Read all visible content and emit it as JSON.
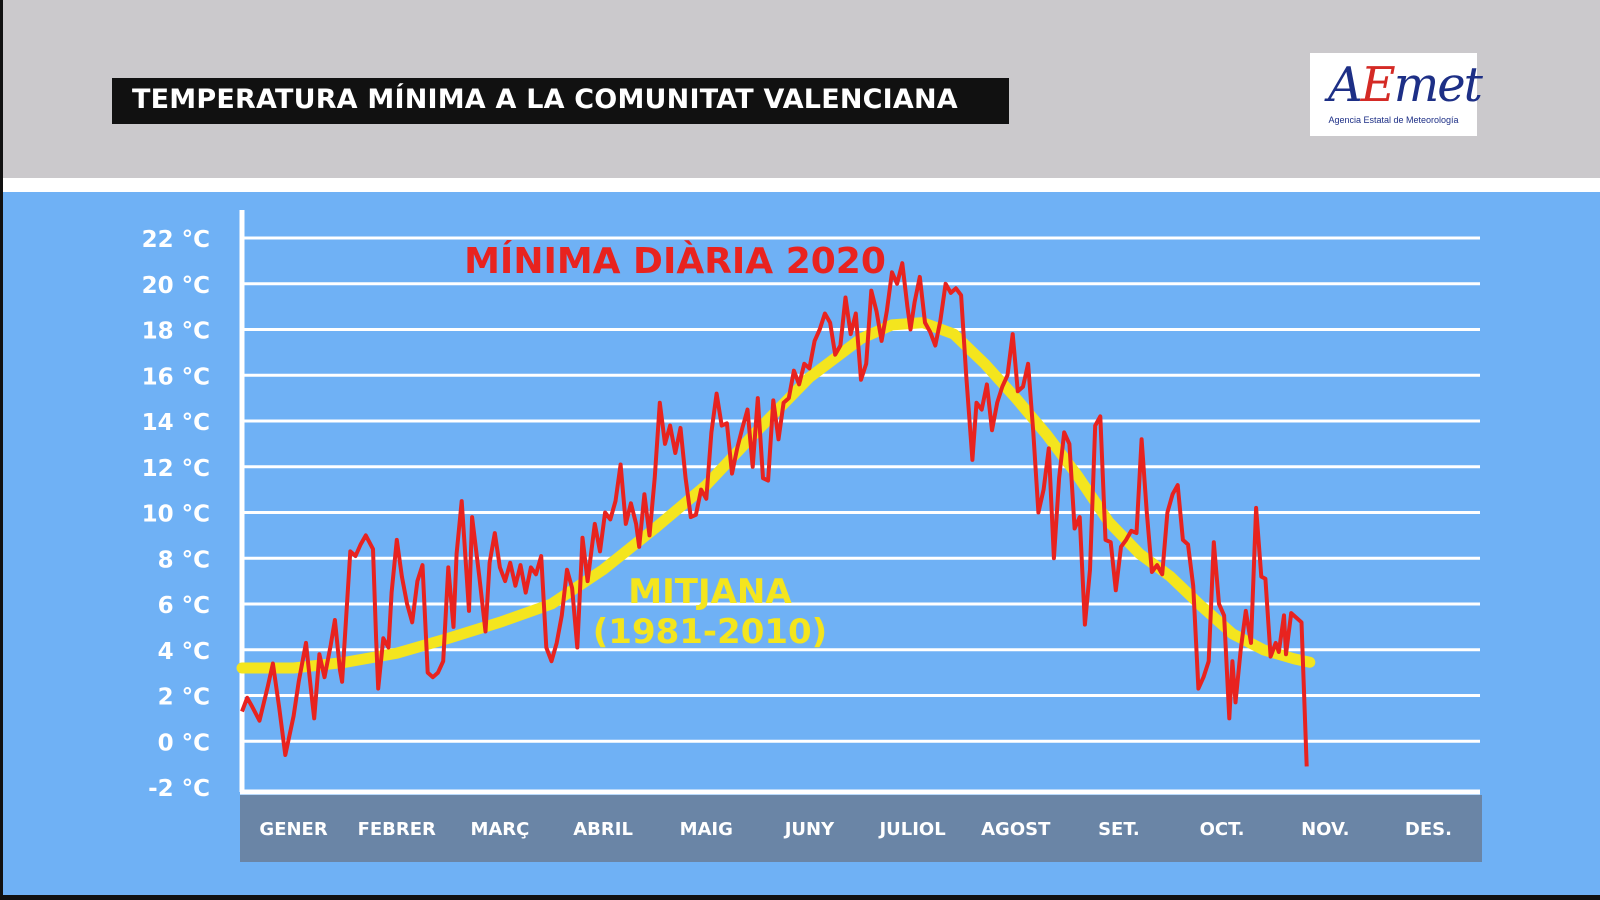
{
  "header": {
    "title": "TEMPERATURA MÍNIMA A LA COMUNITAT VALENCIANA",
    "logo": {
      "word_a": "A",
      "word_e": "E",
      "word_rest": "met",
      "subtitle": "Agencia Estatal de Meteorología"
    }
  },
  "colors": {
    "header_bg": "#cbc9cc",
    "plot_bg": "#6fb1f5",
    "month_band": "#6a85a6",
    "daily_line": "#e8231f",
    "average_line": "#f4e51e",
    "grid": "#ffffff"
  },
  "chart_data": {
    "type": "line",
    "title": "",
    "ylim": [
      -2,
      22
    ],
    "yticks": [
      {
        "value": -2,
        "label": "-2 °C"
      },
      {
        "value": 0,
        "label": "0 °C"
      },
      {
        "value": 2,
        "label": "2 °C"
      },
      {
        "value": 4,
        "label": "4 °C"
      },
      {
        "value": 6,
        "label": "6 °C"
      },
      {
        "value": 8,
        "label": "8 °C"
      },
      {
        "value": 10,
        "label": "10 °C"
      },
      {
        "value": 12,
        "label": "12 °C"
      },
      {
        "value": 14,
        "label": "14 °C"
      },
      {
        "value": 16,
        "label": "16 °C"
      },
      {
        "value": 18,
        "label": "18 °C"
      },
      {
        "value": 20,
        "label": "20 °C"
      },
      {
        "value": 22,
        "label": "22 °C"
      }
    ],
    "months": [
      "GENER",
      "FEBRER",
      "MARÇ",
      "ABRIL",
      "MAIG",
      "JUNY",
      "JULIOL",
      "AGOST",
      "SET.",
      "OCT.",
      "NOV.",
      "DES."
    ],
    "grid": true,
    "series": [
      {
        "name": "MÍNIMA DIÀRIA 2020",
        "color": "#e8231f",
        "points": [
          [
            0.0,
            1.3
          ],
          [
            0.05,
            1.9
          ],
          [
            0.1,
            1.5
          ],
          [
            0.17,
            0.9
          ],
          [
            0.25,
            2.4
          ],
          [
            0.3,
            3.4
          ],
          [
            0.36,
            1.5
          ],
          [
            0.42,
            -0.6
          ],
          [
            0.5,
            1.1
          ],
          [
            0.55,
            2.6
          ],
          [
            0.62,
            4.3
          ],
          [
            0.67,
            2.2
          ],
          [
            0.7,
            1.0
          ],
          [
            0.75,
            3.8
          ],
          [
            0.8,
            2.8
          ],
          [
            0.86,
            4.2
          ],
          [
            0.9,
            5.3
          ],
          [
            0.95,
            3.1
          ],
          [
            0.97,
            2.6
          ],
          [
            1.05,
            8.3
          ],
          [
            1.1,
            8.1
          ],
          [
            1.15,
            8.6
          ],
          [
            1.2,
            9.0
          ],
          [
            1.27,
            8.4
          ],
          [
            1.3,
            4.5
          ],
          [
            1.32,
            2.3
          ],
          [
            1.37,
            4.5
          ],
          [
            1.42,
            4.1
          ],
          [
            1.45,
            6.5
          ],
          [
            1.5,
            8.8
          ],
          [
            1.55,
            7.2
          ],
          [
            1.6,
            6.0
          ],
          [
            1.65,
            5.2
          ],
          [
            1.7,
            7.0
          ],
          [
            1.75,
            7.7
          ],
          [
            1.8,
            3.0
          ],
          [
            1.85,
            2.8
          ],
          [
            1.9,
            3.0
          ],
          [
            1.95,
            3.5
          ],
          [
            2.0,
            7.6
          ],
          [
            2.05,
            5.0
          ],
          [
            2.08,
            8.2
          ],
          [
            2.13,
            10.5
          ],
          [
            2.2,
            5.7
          ],
          [
            2.23,
            9.8
          ],
          [
            2.3,
            7.2
          ],
          [
            2.36,
            4.8
          ],
          [
            2.4,
            7.8
          ],
          [
            2.45,
            9.1
          ],
          [
            2.5,
            7.6
          ],
          [
            2.55,
            7.0
          ],
          [
            2.6,
            7.8
          ],
          [
            2.65,
            6.8
          ],
          [
            2.7,
            7.7
          ],
          [
            2.75,
            6.5
          ],
          [
            2.8,
            7.6
          ],
          [
            2.85,
            7.3
          ],
          [
            2.9,
            8.1
          ],
          [
            2.95,
            4.1
          ],
          [
            3.0,
            3.5
          ],
          [
            3.05,
            4.3
          ],
          [
            3.1,
            5.5
          ],
          [
            3.15,
            7.5
          ],
          [
            3.2,
            6.7
          ],
          [
            3.25,
            4.1
          ],
          [
            3.3,
            8.9
          ],
          [
            3.35,
            7.0
          ],
          [
            3.42,
            9.5
          ],
          [
            3.47,
            8.3
          ],
          [
            3.52,
            10.0
          ],
          [
            3.57,
            9.7
          ],
          [
            3.62,
            10.5
          ],
          [
            3.67,
            12.1
          ],
          [
            3.72,
            9.5
          ],
          [
            3.77,
            10.4
          ],
          [
            3.82,
            9.5
          ],
          [
            3.85,
            8.5
          ],
          [
            3.9,
            10.8
          ],
          [
            3.95,
            9.0
          ],
          [
            4.0,
            11.5
          ],
          [
            4.05,
            14.8
          ],
          [
            4.1,
            13.0
          ],
          [
            4.15,
            13.8
          ],
          [
            4.2,
            12.6
          ],
          [
            4.25,
            13.7
          ],
          [
            4.3,
            11.5
          ],
          [
            4.35,
            9.8
          ],
          [
            4.4,
            9.9
          ],
          [
            4.45,
            11.0
          ],
          [
            4.5,
            10.6
          ],
          [
            4.55,
            13.5
          ],
          [
            4.6,
            15.2
          ],
          [
            4.65,
            13.8
          ],
          [
            4.7,
            13.9
          ],
          [
            4.75,
            11.7
          ],
          [
            4.8,
            12.8
          ],
          [
            4.85,
            13.7
          ],
          [
            4.9,
            14.5
          ],
          [
            4.95,
            12.0
          ],
          [
            5.0,
            15.0
          ],
          [
            5.05,
            11.5
          ],
          [
            5.1,
            11.4
          ],
          [
            5.15,
            14.9
          ],
          [
            5.2,
            13.2
          ],
          [
            5.25,
            14.8
          ],
          [
            5.3,
            15.0
          ],
          [
            5.35,
            16.2
          ],
          [
            5.4,
            15.6
          ],
          [
            5.45,
            16.5
          ],
          [
            5.5,
            16.3
          ],
          [
            5.55,
            17.5
          ],
          [
            5.6,
            18.0
          ],
          [
            5.65,
            18.7
          ],
          [
            5.7,
            18.3
          ],
          [
            5.75,
            16.9
          ],
          [
            5.8,
            17.3
          ],
          [
            5.85,
            19.4
          ],
          [
            5.9,
            17.8
          ],
          [
            5.95,
            18.7
          ],
          [
            6.0,
            15.8
          ],
          [
            6.05,
            16.5
          ],
          [
            6.1,
            19.7
          ],
          [
            6.15,
            18.8
          ],
          [
            6.2,
            17.5
          ],
          [
            6.25,
            18.8
          ],
          [
            6.3,
            20.5
          ],
          [
            6.35,
            20.0
          ],
          [
            6.4,
            20.9
          ],
          [
            6.45,
            19.0
          ],
          [
            6.48,
            18.0
          ],
          [
            6.52,
            19.2
          ],
          [
            6.57,
            20.3
          ],
          [
            6.62,
            18.3
          ],
          [
            6.67,
            17.9
          ],
          [
            6.72,
            17.3
          ],
          [
            6.77,
            18.4
          ],
          [
            6.82,
            20.0
          ],
          [
            6.87,
            19.6
          ],
          [
            6.92,
            19.8
          ],
          [
            6.97,
            19.5
          ],
          [
            7.02,
            16.0
          ],
          [
            7.08,
            12.3
          ],
          [
            7.12,
            14.8
          ],
          [
            7.17,
            14.5
          ],
          [
            7.22,
            15.6
          ],
          [
            7.27,
            13.6
          ],
          [
            7.32,
            14.8
          ],
          [
            7.37,
            15.5
          ],
          [
            7.42,
            16.0
          ],
          [
            7.47,
            17.8
          ],
          [
            7.52,
            15.3
          ],
          [
            7.57,
            15.5
          ],
          [
            7.62,
            16.5
          ],
          [
            7.67,
            13.5
          ],
          [
            7.72,
            10.0
          ],
          [
            7.77,
            11.0
          ],
          [
            7.82,
            12.8
          ],
          [
            7.87,
            8.0
          ],
          [
            7.92,
            11.5
          ],
          [
            7.97,
            13.5
          ],
          [
            8.02,
            13.0
          ],
          [
            8.07,
            9.3
          ],
          [
            8.12,
            9.8
          ],
          [
            8.17,
            5.1
          ],
          [
            8.22,
            7.5
          ],
          [
            8.27,
            13.8
          ],
          [
            8.32,
            14.2
          ],
          [
            8.37,
            8.8
          ],
          [
            8.42,
            8.7
          ],
          [
            8.47,
            6.6
          ],
          [
            8.52,
            8.5
          ],
          [
            8.57,
            8.8
          ],
          [
            8.62,
            9.2
          ],
          [
            8.67,
            9.1
          ],
          [
            8.72,
            13.2
          ],
          [
            8.77,
            10.0
          ],
          [
            8.82,
            7.4
          ],
          [
            8.87,
            7.7
          ],
          [
            8.92,
            7.3
          ],
          [
            8.97,
            10.0
          ],
          [
            9.02,
            10.8
          ],
          [
            9.07,
            11.2
          ],
          [
            9.12,
            8.8
          ],
          [
            9.17,
            8.6
          ],
          [
            9.22,
            6.8
          ],
          [
            9.27,
            2.3
          ],
          [
            9.32,
            2.8
          ],
          [
            9.37,
            3.5
          ],
          [
            9.42,
            8.7
          ],
          [
            9.47,
            6.0
          ],
          [
            9.52,
            5.5
          ],
          [
            9.57,
            1.0
          ],
          [
            9.6,
            3.5
          ],
          [
            9.63,
            1.7
          ],
          [
            9.68,
            4.0
          ],
          [
            9.73,
            5.7
          ],
          [
            9.78,
            4.3
          ],
          [
            9.83,
            10.2
          ],
          [
            9.88,
            7.2
          ],
          [
            9.92,
            7.1
          ],
          [
            9.97,
            3.7
          ],
          [
            10.02,
            4.3
          ],
          [
            10.05,
            3.9
          ],
          [
            10.1,
            5.5
          ],
          [
            10.12,
            3.8
          ],
          [
            10.17,
            5.6
          ],
          [
            10.22,
            5.4
          ],
          [
            10.27,
            5.2
          ],
          [
            10.32,
            -1.1
          ]
        ]
      },
      {
        "name": "MITJANA (1981-2010)",
        "color": "#f4e51e",
        "points": [
          [
            0.0,
            3.2
          ],
          [
            0.5,
            3.2
          ],
          [
            1.0,
            3.45
          ],
          [
            1.5,
            3.85
          ],
          [
            2.0,
            4.5
          ],
          [
            2.5,
            5.2
          ],
          [
            3.0,
            6.0
          ],
          [
            3.5,
            7.5
          ],
          [
            4.0,
            9.3
          ],
          [
            4.5,
            11.2
          ],
          [
            5.0,
            13.6
          ],
          [
            5.5,
            15.9
          ],
          [
            6.0,
            17.6
          ],
          [
            6.3,
            18.2
          ],
          [
            6.6,
            18.3
          ],
          [
            6.9,
            17.8
          ],
          [
            7.2,
            16.5
          ],
          [
            7.5,
            15.0
          ],
          [
            7.8,
            13.4
          ],
          [
            8.1,
            11.6
          ],
          [
            8.4,
            9.6
          ],
          [
            8.7,
            8.2
          ],
          [
            9.0,
            7.2
          ],
          [
            9.3,
            5.9
          ],
          [
            9.6,
            4.7
          ],
          [
            9.9,
            4.0
          ],
          [
            10.2,
            3.6
          ],
          [
            10.35,
            3.45
          ]
        ]
      }
    ],
    "labels": {
      "daily": "MÍNIMA DIÀRIA 2020",
      "average_line1": "MITJANA",
      "average_line2": "(1981-2010)"
    }
  }
}
